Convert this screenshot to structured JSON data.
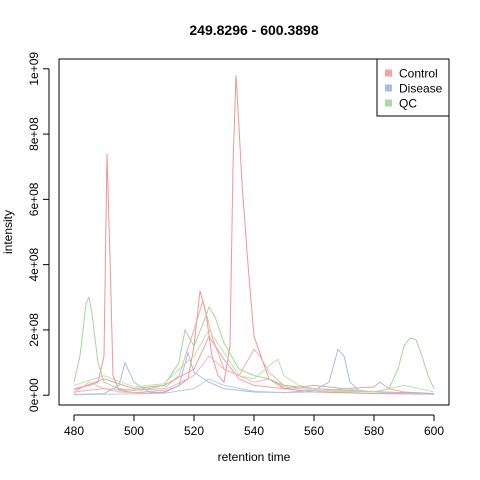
{
  "chart_data": {
    "type": "line",
    "title": "249.8296 - 600.3898",
    "xlabel": "retention time",
    "ylabel": "intensity",
    "xlim": [
      475,
      605
    ],
    "ylim": [
      -30000000.0,
      1030000000.0
    ],
    "x_ticks": [
      480,
      500,
      520,
      540,
      560,
      580,
      600
    ],
    "x_tick_labels": [
      "480",
      "500",
      "520",
      "540",
      "560",
      "580",
      "600"
    ],
    "y_ticks": [
      0,
      200000000,
      400000000,
      600000000,
      800000000,
      1000000000
    ],
    "y_tick_labels": [
      "0e+00",
      "2e+08",
      "4e+08",
      "6e+08",
      "8e+08",
      "1e+09"
    ],
    "legend": {
      "position": "top-right",
      "entries": [
        {
          "label": "Control",
          "color": "#F4A3A3"
        },
        {
          "label": "Disease",
          "color": "#A9BFDE"
        },
        {
          "label": "QC",
          "color": "#A9DCA0"
        }
      ]
    },
    "series": [
      {
        "group": "Control",
        "color": "#F08A8A",
        "x": [
          480,
          485,
          488,
          490,
          491,
          492,
          493,
          495,
          500,
          505,
          510,
          515,
          518,
          520,
          522,
          524,
          526,
          528,
          530,
          532,
          533,
          534,
          535,
          536,
          538,
          540,
          545,
          550,
          560,
          570,
          580,
          590,
          600
        ],
        "y": [
          20000000,
          30000000,
          40000000,
          120000000,
          740000000,
          420000000,
          60000000,
          15000000,
          8000000,
          6000000,
          10000000,
          30000000,
          50000000,
          150000000,
          320000000,
          250000000,
          120000000,
          60000000,
          40000000,
          150000000,
          700000000,
          980000000,
          820000000,
          650000000,
          400000000,
          180000000,
          50000000,
          20000000,
          10000000,
          8000000,
          5000000,
          4000000,
          3000000
        ]
      },
      {
        "group": "Control",
        "color": "#F3A5A5",
        "x": [
          480,
          490,
          500,
          510,
          515,
          520,
          523,
          526,
          530,
          535,
          540,
          542,
          545,
          550,
          560,
          570,
          580,
          590,
          600
        ],
        "y": [
          10000000,
          20000000,
          15000000,
          20000000,
          60000000,
          200000000,
          290000000,
          180000000,
          80000000,
          60000000,
          140000000,
          120000000,
          70000000,
          30000000,
          20000000,
          15000000,
          10000000,
          8000000,
          5000000
        ]
      },
      {
        "group": "Control",
        "color": "#EE9999",
        "x": [
          480,
          490,
          500,
          510,
          520,
          525,
          530,
          535,
          540,
          550,
          560,
          570,
          580,
          582,
          585,
          590,
          600
        ],
        "y": [
          15000000,
          50000000,
          20000000,
          30000000,
          80000000,
          180000000,
          110000000,
          50000000,
          30000000,
          20000000,
          30000000,
          20000000,
          25000000,
          40000000,
          20000000,
          10000000,
          5000000
        ]
      },
      {
        "group": "Control",
        "color": "#F2B0B0",
        "x": [
          480,
          485,
          490,
          495,
          500,
          510,
          520,
          525,
          530,
          540,
          545,
          550,
          560,
          570,
          580,
          590,
          600
        ],
        "y": [
          5000000,
          40000000,
          20000000,
          10000000,
          8000000,
          15000000,
          60000000,
          120000000,
          80000000,
          40000000,
          50000000,
          25000000,
          15000000,
          10000000,
          12000000,
          6000000,
          4000000
        ]
      },
      {
        "group": "Disease",
        "color": "#9FB7DB",
        "x": [
          480,
          490,
          495,
          497,
          500,
          505,
          510,
          515,
          518,
          520,
          525,
          530,
          540,
          550,
          560,
          565,
          568,
          570,
          572,
          575,
          580,
          590,
          600
        ],
        "y": [
          2000000,
          5000000,
          30000000,
          100000000,
          40000000,
          10000000,
          8000000,
          30000000,
          130000000,
          70000000,
          40000000,
          20000000,
          10000000,
          8000000,
          15000000,
          40000000,
          140000000,
          120000000,
          40000000,
          15000000,
          10000000,
          8000000,
          5000000
        ]
      },
      {
        "group": "Disease",
        "color": "#B4C7E4",
        "x": [
          480,
          490,
          500,
          510,
          520,
          525,
          530,
          540,
          550,
          560,
          570,
          580,
          590,
          600
        ],
        "y": [
          1000000,
          3000000,
          4000000,
          6000000,
          20000000,
          50000000,
          30000000,
          12000000,
          8000000,
          10000000,
          20000000,
          10000000,
          6000000,
          3000000
        ]
      },
      {
        "group": "QC",
        "color": "#98D48D",
        "x": [
          480,
          482,
          484,
          485,
          486,
          488,
          490,
          495,
          500,
          505,
          510,
          515,
          517,
          520,
          523,
          525,
          527,
          530,
          535,
          540,
          545,
          550,
          560,
          570,
          580,
          585,
          588,
          590,
          592,
          594,
          596,
          598,
          600
        ],
        "y": [
          40000000,
          120000000,
          280000000,
          300000000,
          250000000,
          100000000,
          40000000,
          20000000,
          15000000,
          20000000,
          30000000,
          100000000,
          200000000,
          150000000,
          220000000,
          270000000,
          240000000,
          160000000,
          80000000,
          60000000,
          50000000,
          30000000,
          20000000,
          15000000,
          10000000,
          20000000,
          80000000,
          150000000,
          175000000,
          170000000,
          120000000,
          60000000,
          20000000
        ]
      },
      {
        "group": "QC",
        "color": "#B2E0AA",
        "x": [
          480,
          490,
          500,
          510,
          515,
          520,
          525,
          530,
          535,
          540,
          545,
          548,
          550,
          555,
          560,
          570,
          580,
          590,
          600
        ],
        "y": [
          30000000,
          60000000,
          25000000,
          35000000,
          80000000,
          120000000,
          200000000,
          130000000,
          60000000,
          50000000,
          90000000,
          110000000,
          60000000,
          30000000,
          20000000,
          12000000,
          10000000,
          30000000,
          10000000
        ]
      }
    ]
  }
}
